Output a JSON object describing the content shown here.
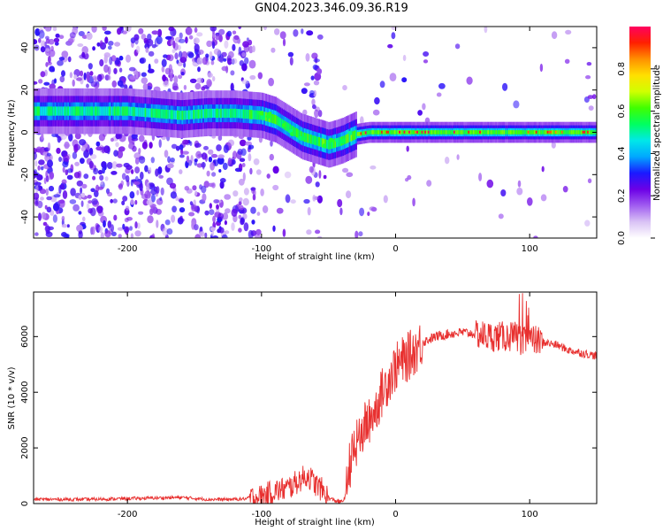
{
  "title": "GN04.2023.346.09.36.R19",
  "colors": {
    "snr_line": "#e8302f",
    "axis": "#000000"
  },
  "chart_data": [
    {
      "type": "heatmap",
      "xlabel": "Height of straight line (km)",
      "ylabel": "Frequency (Hz)",
      "xlim": [
        -270,
        150
      ],
      "ylim": [
        -50,
        50
      ],
      "x_ticks": [
        -200,
        -100,
        0,
        100
      ],
      "y_ticks": [
        -40,
        -20,
        0,
        20,
        40
      ],
      "colorbar": {
        "label": "Normalized spectral amplitude",
        "range": [
          0.0,
          1.0
        ],
        "ticks": [
          0.0,
          0.2,
          0.4,
          0.6,
          0.8
        ],
        "colormap": [
          "#ffffff",
          "#d9c2f5",
          "#a05cf0",
          "#6c00e6",
          "#1a1aff",
          "#00a8ff",
          "#00e8e8",
          "#00ff60",
          "#40ff00",
          "#d0ff00",
          "#ffe000",
          "#ff9000",
          "#ff2000",
          "#ff0060"
        ]
      },
      "ridge": {
        "x": [
          -270,
          -230,
          -200,
          -180,
          -160,
          -140,
          -120,
          -100,
          -90,
          -80,
          -70,
          -60,
          -50,
          -40,
          -30,
          -20,
          -10,
          0,
          50,
          100,
          150
        ],
        "y": [
          10,
          10,
          10,
          9,
          8,
          9,
          9,
          8,
          6,
          2,
          -2,
          -4,
          -6,
          -4,
          -1,
          0,
          0,
          0,
          0,
          0,
          0
        ]
      }
    },
    {
      "type": "line",
      "xlabel": "Height of straight line (km)",
      "ylabel": "SNR (10 * v/v)",
      "xlim": [
        -270,
        150
      ],
      "ylim": [
        0,
        7600
      ],
      "x_ticks": [
        -200,
        -100,
        0,
        100
      ],
      "y_ticks": [
        0,
        2000,
        4000,
        6000
      ],
      "series": [
        {
          "x": [
            -270,
            -250,
            -230,
            -200,
            -180,
            -160,
            -140,
            -120,
            -110,
            -100,
            -90,
            -80,
            -70,
            -65,
            -60,
            -55,
            -50,
            -45,
            -40,
            -37,
            -35,
            -30,
            -25,
            -20,
            -15,
            -10,
            -5,
            0,
            10,
            20,
            30,
            40,
            50,
            60,
            70,
            80,
            90,
            95,
            100,
            110,
            120,
            130,
            140,
            150
          ],
          "y": [
            150,
            150,
            150,
            180,
            200,
            220,
            150,
            150,
            180,
            250,
            450,
            550,
            900,
            1000,
            700,
            500,
            200,
            100,
            50,
            300,
            1300,
            2000,
            2600,
            3000,
            3400,
            4000,
            4500,
            4900,
            5300,
            5800,
            6000,
            6100,
            6150,
            6100,
            6000,
            6000,
            6000,
            5800,
            5900,
            5800,
            5700,
            5500,
            5400,
            5300
          ]
        }
      ]
    }
  ]
}
